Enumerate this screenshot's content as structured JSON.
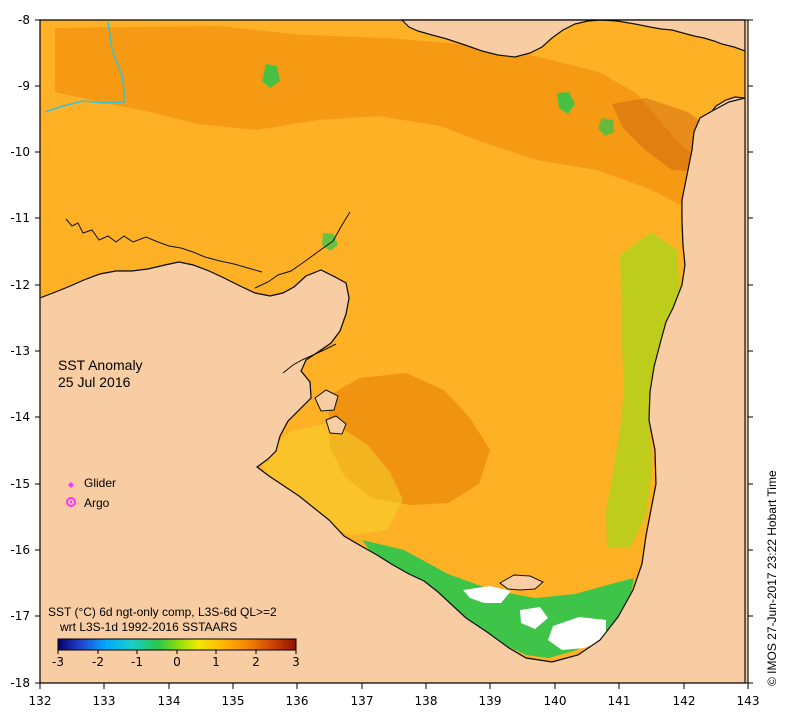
{
  "title": {
    "line1": "SST Anomaly",
    "line2": "25 Jul 2016"
  },
  "legend": {
    "glider_label": "Glider",
    "argo_label": "Argo",
    "glider_color": "#ff33ff",
    "argo_color": "#ff33ff"
  },
  "description": {
    "line1": "SST (°C) 6d ngt-only comp, L3S-6d QL>=2",
    "line2": "wrt L3S-1d 1992-2016 SSTAARS"
  },
  "colorbar": {
    "ticks": [
      "-3",
      "-2",
      "-1",
      "0",
      "1",
      "2",
      "3"
    ],
    "colors": [
      "#08006b",
      "#2046d0",
      "#00a9ff",
      "#17cfc8",
      "#28c74e",
      "#86dd0f",
      "#f2e900",
      "#ffb300",
      "#ef7e00",
      "#cb3d00",
      "#8b1500"
    ]
  },
  "axes": {
    "x_ticks": [
      "132",
      "133",
      "134",
      "135",
      "136",
      "137",
      "138",
      "139",
      "140",
      "141",
      "142",
      "143"
    ],
    "y_ticks": [
      "-8",
      "-9",
      "-10",
      "-11",
      "-12",
      "-13",
      "-14",
      "-15",
      "-16",
      "-17",
      "-18"
    ]
  },
  "stamp": "© IMOS 27-Jun-2017 23:22 Hobart Time",
  "colors": {
    "land": "#f9cda4",
    "water_main": "#ffb126",
    "water_deep": "#ef8e08",
    "water_warm_edge": "#f4d12c",
    "water_green": "#28c74e",
    "water_light_green": "#96df15",
    "coast": "#111111",
    "river": "#35c2d8"
  }
}
